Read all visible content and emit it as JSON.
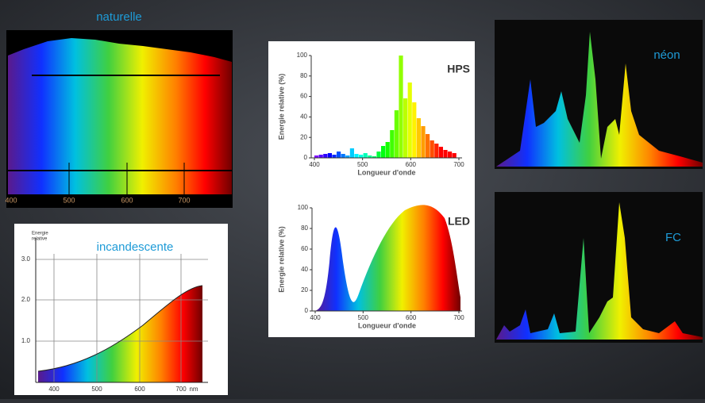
{
  "panels": {
    "naturelle": {
      "label": "naturelle",
      "xticks": [
        "400",
        "500",
        "600",
        "700"
      ]
    },
    "incandescente": {
      "label": "incandescente",
      "y_axis_title": [
        "Energie",
        "relative"
      ],
      "yticks": [
        "3.0",
        "2.0",
        "1.0"
      ],
      "xticks": [
        "400",
        "500",
        "600",
        "700",
        "nm"
      ]
    },
    "hps": {
      "label": "HPS",
      "y_axis_title": "Energie relative (%)",
      "x_axis_title": "Longueur d'onde",
      "yticks": [
        0,
        20,
        40,
        60,
        80,
        100
      ],
      "xticks": [
        400,
        500,
        600,
        700
      ]
    },
    "led": {
      "label": "LED",
      "y_axis_title": "Energie relative (%)",
      "x_axis_title": "Longueur d'onde",
      "yticks": [
        0,
        20,
        40,
        60,
        80,
        100
      ],
      "xticks": [
        400,
        500,
        600,
        700
      ]
    },
    "neon": {
      "label": "néon"
    },
    "fc": {
      "label": "FC"
    }
  }
}
